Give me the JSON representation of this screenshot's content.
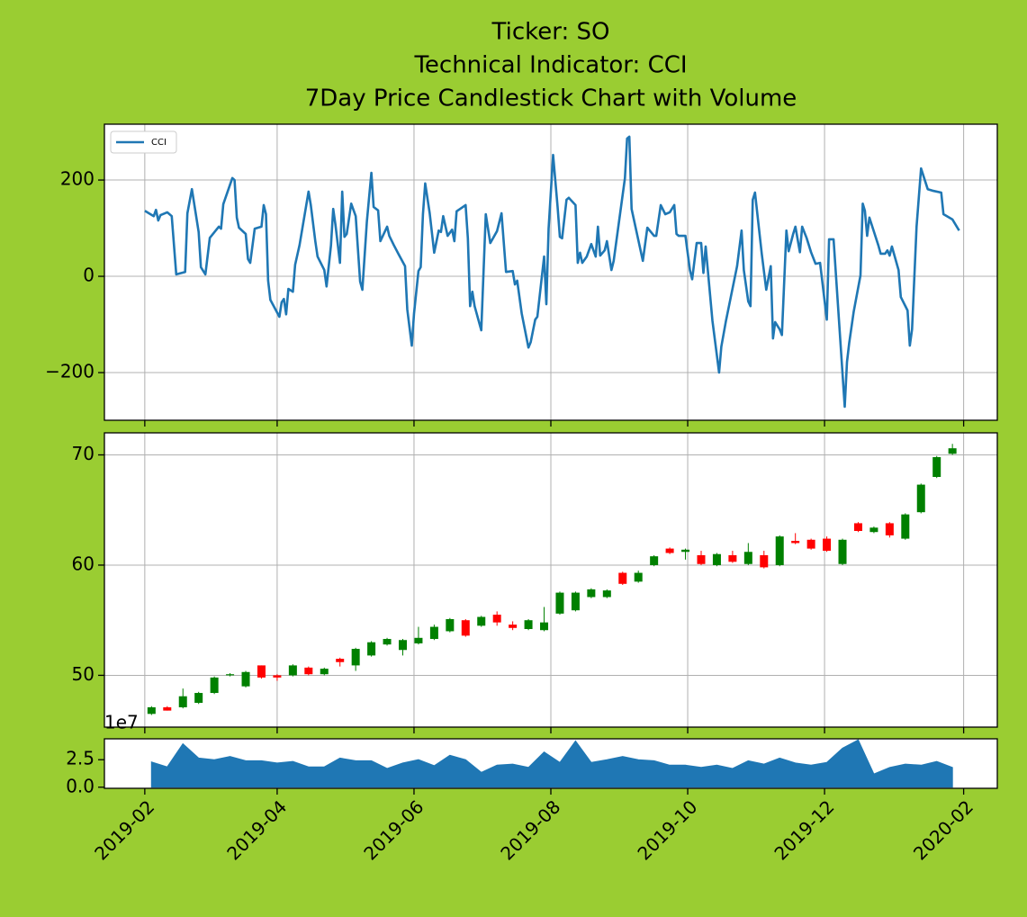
{
  "title": [
    "Ticker: SO",
    "Technical Indicator: CCI",
    "7Day Price Candlestick Chart with Volume"
  ],
  "chart_data": [
    {
      "type": "line",
      "legend": "upper left",
      "grid": true,
      "ylim": [
        -299,
        316
      ],
      "yticks": [
        {
          "value": -200,
          "label": "−200"
        },
        0,
        200
      ],
      "x": [
        "2019-02-01",
        "2019-02-05",
        "2019-02-06",
        "2019-02-07",
        "2019-02-08",
        "2019-02-11",
        "2019-02-13",
        "2019-02-15",
        "2019-02-19",
        "2019-02-20",
        "2019-02-22",
        "2019-02-25",
        "2019-02-26",
        "2019-02-28",
        "2019-03-02",
        "2019-03-06",
        "2019-03-07",
        "2019-03-08",
        "2019-03-12",
        "2019-03-13",
        "2019-03-14",
        "2019-03-15",
        "2019-03-18",
        "2019-03-19",
        "2019-03-20",
        "2019-03-22",
        "2019-03-25",
        "2019-03-26",
        "2019-03-27",
        "2019-03-28",
        "2019-03-29",
        "2019-04-02",
        "2019-04-03",
        "2019-04-04",
        "2019-04-05",
        "2019-04-06",
        "2019-04-08",
        "2019-04-09",
        "2019-04-11",
        "2019-04-15",
        "2019-04-16",
        "2019-04-18",
        "2019-04-19",
        "2019-04-22",
        "2019-04-23",
        "2019-04-25",
        "2019-04-26",
        "2019-04-27",
        "2019-04-29",
        "2019-04-30",
        "2019-05-01",
        "2019-05-02",
        "2019-05-04",
        "2019-05-06",
        "2019-05-08",
        "2019-05-09",
        "2019-05-11",
        "2019-05-13",
        "2019-05-14",
        "2019-05-16",
        "2019-05-17",
        "2019-05-20",
        "2019-05-21",
        "2019-05-23",
        "2019-05-25",
        "2019-05-28",
        "2019-05-29",
        "2019-05-31",
        "2019-06-01",
        "2019-06-03",
        "2019-06-04",
        "2019-06-05",
        "2019-06-06",
        "2019-06-08",
        "2019-06-10",
        "2019-06-12",
        "2019-06-13",
        "2019-06-14",
        "2019-06-16",
        "2019-06-18",
        "2019-06-19",
        "2019-06-20",
        "2019-06-24",
        "2019-06-25",
        "2019-06-26",
        "2019-06-27",
        "2019-06-28",
        "2019-07-01",
        "2019-07-03",
        "2019-07-05",
        "2019-07-08",
        "2019-07-10",
        "2019-07-12",
        "2019-07-15",
        "2019-07-16",
        "2019-07-17",
        "2019-07-19",
        "2019-07-22",
        "2019-07-23",
        "2019-07-25",
        "2019-07-26",
        "2019-07-29",
        "2019-07-30",
        "2019-07-31",
        "2019-08-02",
        "2019-08-04",
        "2019-08-05",
        "2019-08-06",
        "2019-08-08",
        "2019-08-09",
        "2019-08-12",
        "2019-08-13",
        "2019-08-14",
        "2019-08-15",
        "2019-08-17",
        "2019-08-19",
        "2019-08-21",
        "2019-08-22",
        "2019-08-23",
        "2019-08-25",
        "2019-08-26",
        "2019-08-28",
        "2019-08-29",
        "2019-09-03",
        "2019-09-04",
        "2019-09-05",
        "2019-09-06",
        "2019-09-11",
        "2019-09-13",
        "2019-09-16",
        "2019-09-17",
        "2019-09-19",
        "2019-09-21",
        "2019-09-23",
        "2019-09-25",
        "2019-09-26",
        "2019-09-27",
        "2019-09-30",
        "2019-10-02",
        "2019-10-03",
        "2019-10-05",
        "2019-10-07",
        "2019-10-08",
        "2019-10-09",
        "2019-10-12",
        "2019-10-15",
        "2019-10-16",
        "2019-10-18",
        "2019-10-23",
        "2019-10-25",
        "2019-10-26",
        "2019-10-28",
        "2019-10-29",
        "2019-10-30",
        "2019-10-31",
        "2019-11-03",
        "2019-11-05",
        "2019-11-07",
        "2019-11-08",
        "2019-11-09",
        "2019-11-11",
        "2019-11-12",
        "2019-11-14",
        "2019-11-15",
        "2019-11-17",
        "2019-11-18",
        "2019-11-20",
        "2019-11-21",
        "2019-11-23",
        "2019-11-25",
        "2019-11-27",
        "2019-11-29",
        "2019-12-02",
        "2019-12-03",
        "2019-12-05",
        "2019-12-10",
        "2019-12-11",
        "2019-12-12",
        "2019-12-14",
        "2019-12-17",
        "2019-12-18",
        "2019-12-19",
        "2019-12-20",
        "2019-12-21",
        "2019-12-25",
        "2019-12-26",
        "2019-12-28",
        "2019-12-29",
        "2019-12-30",
        "2019-12-31",
        "2020-01-03",
        "2020-01-04",
        "2020-01-07",
        "2020-01-08",
        "2020-01-09",
        "2020-01-11",
        "2020-01-13",
        "2020-01-16",
        "2020-01-18",
        "2020-01-22",
        "2020-01-23",
        "2020-01-27",
        "2020-01-30"
      ],
      "series": [
        {
          "name": "CCI",
          "color": "#1f77b4",
          "values": [
            136,
            125,
            138,
            116,
            127,
            133,
            125,
            4,
            9,
            131,
            181,
            92,
            19,
            4,
            80,
            103,
            99,
            150,
            204,
            200,
            122,
            101,
            88,
            36,
            28,
            99,
            103,
            148,
            129,
            -9,
            -49,
            -84,
            -54,
            -47,
            -79,
            -26,
            -32,
            24,
            65,
            176,
            148,
            73,
            41,
            13,
            -21,
            64,
            140,
            107,
            28,
            176,
            82,
            88,
            151,
            125,
            -11,
            -28,
            114,
            215,
            144,
            137,
            73,
            103,
            84,
            65,
            47,
            21,
            -69,
            -144,
            -77,
            11,
            19,
            129,
            193,
            131,
            49,
            95,
            92,
            125,
            84,
            97,
            73,
            135,
            148,
            79,
            -62,
            -32,
            -62,
            -112,
            129,
            69,
            94,
            131,
            9,
            11,
            -17,
            -9,
            -77,
            -148,
            -137,
            -90,
            -84,
            41,
            -58,
            99,
            252,
            144,
            82,
            79,
            159,
            163,
            148,
            28,
            49,
            28,
            41,
            67,
            41,
            103,
            43,
            54,
            73,
            13,
            32,
            204,
            286,
            290,
            140,
            32,
            101,
            84,
            84,
            148,
            129,
            133,
            148,
            88,
            84,
            84,
            13,
            -6,
            69,
            69,
            7,
            62,
            -92,
            -200,
            -146,
            -94,
            21,
            95,
            13,
            -52,
            -62,
            159,
            174,
            47,
            -28,
            21,
            -129,
            -95,
            -110,
            -122,
            95,
            52,
            88,
            103,
            50,
            103,
            80,
            50,
            26,
            28,
            -90,
            77,
            77,
            -271,
            -178,
            -138,
            -73,
            2,
            151,
            136,
            84,
            122,
            64,
            47,
            47,
            54,
            43,
            62,
            13,
            -43,
            -71,
            -144,
            -110,
            103,
            224,
            181,
            178,
            174,
            129,
            118,
            95
          ]
        }
      ]
    },
    {
      "type": "candlestick",
      "grid": true,
      "up_color": "green",
      "down_color": "red",
      "ylim": [
        45.3,
        72
      ],
      "yticks": [
        50,
        60,
        70
      ],
      "x": [
        "2019-02-04",
        "2019-02-11",
        "2019-02-18",
        "2019-02-25",
        "2019-03-04",
        "2019-03-11",
        "2019-03-18",
        "2019-03-25",
        "2019-04-01",
        "2019-04-08",
        "2019-04-15",
        "2019-04-22",
        "2019-04-29",
        "2019-05-06",
        "2019-05-13",
        "2019-05-20",
        "2019-05-27",
        "2019-06-03",
        "2019-06-10",
        "2019-06-17",
        "2019-06-24",
        "2019-07-01",
        "2019-07-08",
        "2019-07-15",
        "2019-07-22",
        "2019-07-29",
        "2019-08-05",
        "2019-08-12",
        "2019-08-19",
        "2019-08-26",
        "2019-09-02",
        "2019-09-09",
        "2019-09-16",
        "2019-09-23",
        "2019-09-30",
        "2019-10-07",
        "2019-10-14",
        "2019-10-21",
        "2019-10-28",
        "2019-11-04",
        "2019-11-11",
        "2019-11-18",
        "2019-11-25",
        "2019-12-02",
        "2019-12-09",
        "2019-12-16",
        "2019-12-23",
        "2019-12-30",
        "2020-01-06",
        "2020-01-13",
        "2020-01-20",
        "2020-01-27"
      ],
      "open": [
        46.5,
        47.1,
        47.1,
        47.5,
        48.4,
        50.0,
        49.0,
        50.9,
        50.0,
        50.0,
        50.7,
        50.1,
        51.5,
        50.9,
        51.8,
        52.8,
        52.3,
        52.9,
        53.3,
        54.0,
        55.0,
        54.5,
        55.5,
        54.6,
        54.2,
        54.1,
        55.6,
        55.9,
        57.1,
        57.1,
        59.3,
        58.5,
        60.0,
        61.5,
        61.2,
        60.9,
        60.0,
        60.9,
        60.1,
        60.9,
        60.0,
        62.2,
        62.3,
        62.4,
        60.1,
        63.8,
        63.0,
        63.8,
        62.4,
        64.8,
        68.0,
        70.1
      ],
      "high": [
        47.2,
        47.2,
        48.8,
        48.5,
        49.9,
        50.2,
        50.4,
        50.9,
        50.1,
        51.0,
        50.8,
        50.7,
        51.6,
        52.5,
        53.1,
        53.4,
        53.3,
        54.4,
        54.6,
        55.2,
        55.1,
        55.4,
        55.8,
        54.9,
        55.1,
        56.2,
        57.6,
        57.6,
        57.9,
        57.8,
        59.4,
        59.5,
        60.9,
        61.6,
        61.5,
        61.3,
        61.1,
        61.3,
        62.0,
        61.3,
        62.7,
        62.9,
        62.4,
        62.6,
        62.4,
        63.9,
        63.5,
        63.9,
        64.7,
        67.4,
        69.9,
        71.0
      ],
      "low": [
        46.4,
        46.8,
        47.0,
        47.4,
        48.3,
        49.9,
        48.9,
        49.7,
        49.5,
        49.9,
        50.0,
        50.0,
        50.8,
        50.4,
        51.7,
        52.7,
        51.8,
        52.8,
        53.2,
        53.9,
        53.5,
        54.4,
        54.5,
        54.1,
        54.1,
        54.0,
        55.5,
        55.8,
        57.0,
        57.0,
        58.2,
        58.4,
        59.9,
        61.0,
        60.5,
        60.0,
        59.9,
        60.2,
        60.0,
        59.7,
        59.9,
        61.9,
        61.4,
        61.2,
        60.0,
        63.0,
        62.9,
        62.5,
        62.3,
        64.7,
        67.9,
        70.0
      ],
      "close": [
        47.1,
        46.8,
        48.1,
        48.4,
        49.8,
        50.1,
        50.3,
        49.8,
        49.8,
        50.9,
        50.1,
        50.6,
        51.2,
        52.4,
        53.0,
        53.3,
        53.2,
        53.4,
        54.4,
        55.1,
        53.6,
        55.3,
        54.8,
        54.3,
        55.0,
        54.8,
        57.5,
        57.5,
        57.8,
        57.7,
        58.3,
        59.3,
        60.8,
        61.1,
        61.4,
        60.1,
        61.0,
        60.3,
        61.2,
        59.8,
        62.6,
        62.0,
        61.5,
        61.3,
        62.3,
        63.1,
        63.4,
        62.7,
        64.6,
        67.3,
        69.8,
        70.6
      ]
    },
    {
      "type": "area",
      "color": "#1f77b4",
      "y_offset_label": "1e7",
      "ylim": [
        -0.1,
        4.4
      ],
      "yticks": [
        {
          "value": 0,
          "label": "0.0"
        },
        2.5
      ],
      "xlim": [
        "2019-01-14",
        "2020-02-16"
      ],
      "xticks": [
        {
          "value": "2019-02-01",
          "label": "2019-02"
        },
        {
          "value": "2019-04-01",
          "label": "2019-04"
        },
        {
          "value": "2019-06-01",
          "label": "2019-06"
        },
        {
          "value": "2019-08-01",
          "label": "2019-08"
        },
        {
          "value": "2019-10-01",
          "label": "2019-10"
        },
        {
          "value": "2019-12-01",
          "label": "2019-12"
        },
        {
          "value": "2020-02-01",
          "label": "2020-02"
        }
      ],
      "x": [
        "2019-02-04",
        "2019-02-11",
        "2019-02-18",
        "2019-02-25",
        "2019-03-04",
        "2019-03-11",
        "2019-03-18",
        "2019-03-25",
        "2019-04-01",
        "2019-04-08",
        "2019-04-15",
        "2019-04-22",
        "2019-04-29",
        "2019-05-06",
        "2019-05-13",
        "2019-05-20",
        "2019-05-27",
        "2019-06-03",
        "2019-06-10",
        "2019-06-17",
        "2019-06-24",
        "2019-07-01",
        "2019-07-08",
        "2019-07-15",
        "2019-07-22",
        "2019-07-29",
        "2019-08-05",
        "2019-08-12",
        "2019-08-19",
        "2019-08-26",
        "2019-09-02",
        "2019-09-09",
        "2019-09-16",
        "2019-09-23",
        "2019-09-30",
        "2019-10-07",
        "2019-10-14",
        "2019-10-21",
        "2019-10-28",
        "2019-11-04",
        "2019-11-11",
        "2019-11-18",
        "2019-11-25",
        "2019-12-02",
        "2019-12-09",
        "2019-12-16",
        "2019-12-23",
        "2019-12-30",
        "2020-01-06",
        "2020-01-13",
        "2020-01-20",
        "2020-01-27"
      ],
      "values": [
        2.3,
        1.85,
        3.95,
        2.65,
        2.5,
        2.8,
        2.4,
        2.4,
        2.2,
        2.35,
        1.85,
        1.85,
        2.65,
        2.4,
        2.4,
        1.7,
        2.2,
        2.5,
        1.95,
        2.9,
        2.5,
        1.35,
        2.0,
        2.1,
        1.8,
        3.2,
        2.25,
        4.2,
        2.25,
        2.5,
        2.8,
        2.5,
        2.4,
        2.0,
        2.0,
        1.8,
        2.0,
        1.7,
        2.4,
        2.1,
        2.65,
        2.2,
        2.0,
        2.25,
        3.55,
        4.3,
        1.2,
        1.8,
        2.1,
        2.0,
        2.35,
        1.8
      ]
    }
  ]
}
